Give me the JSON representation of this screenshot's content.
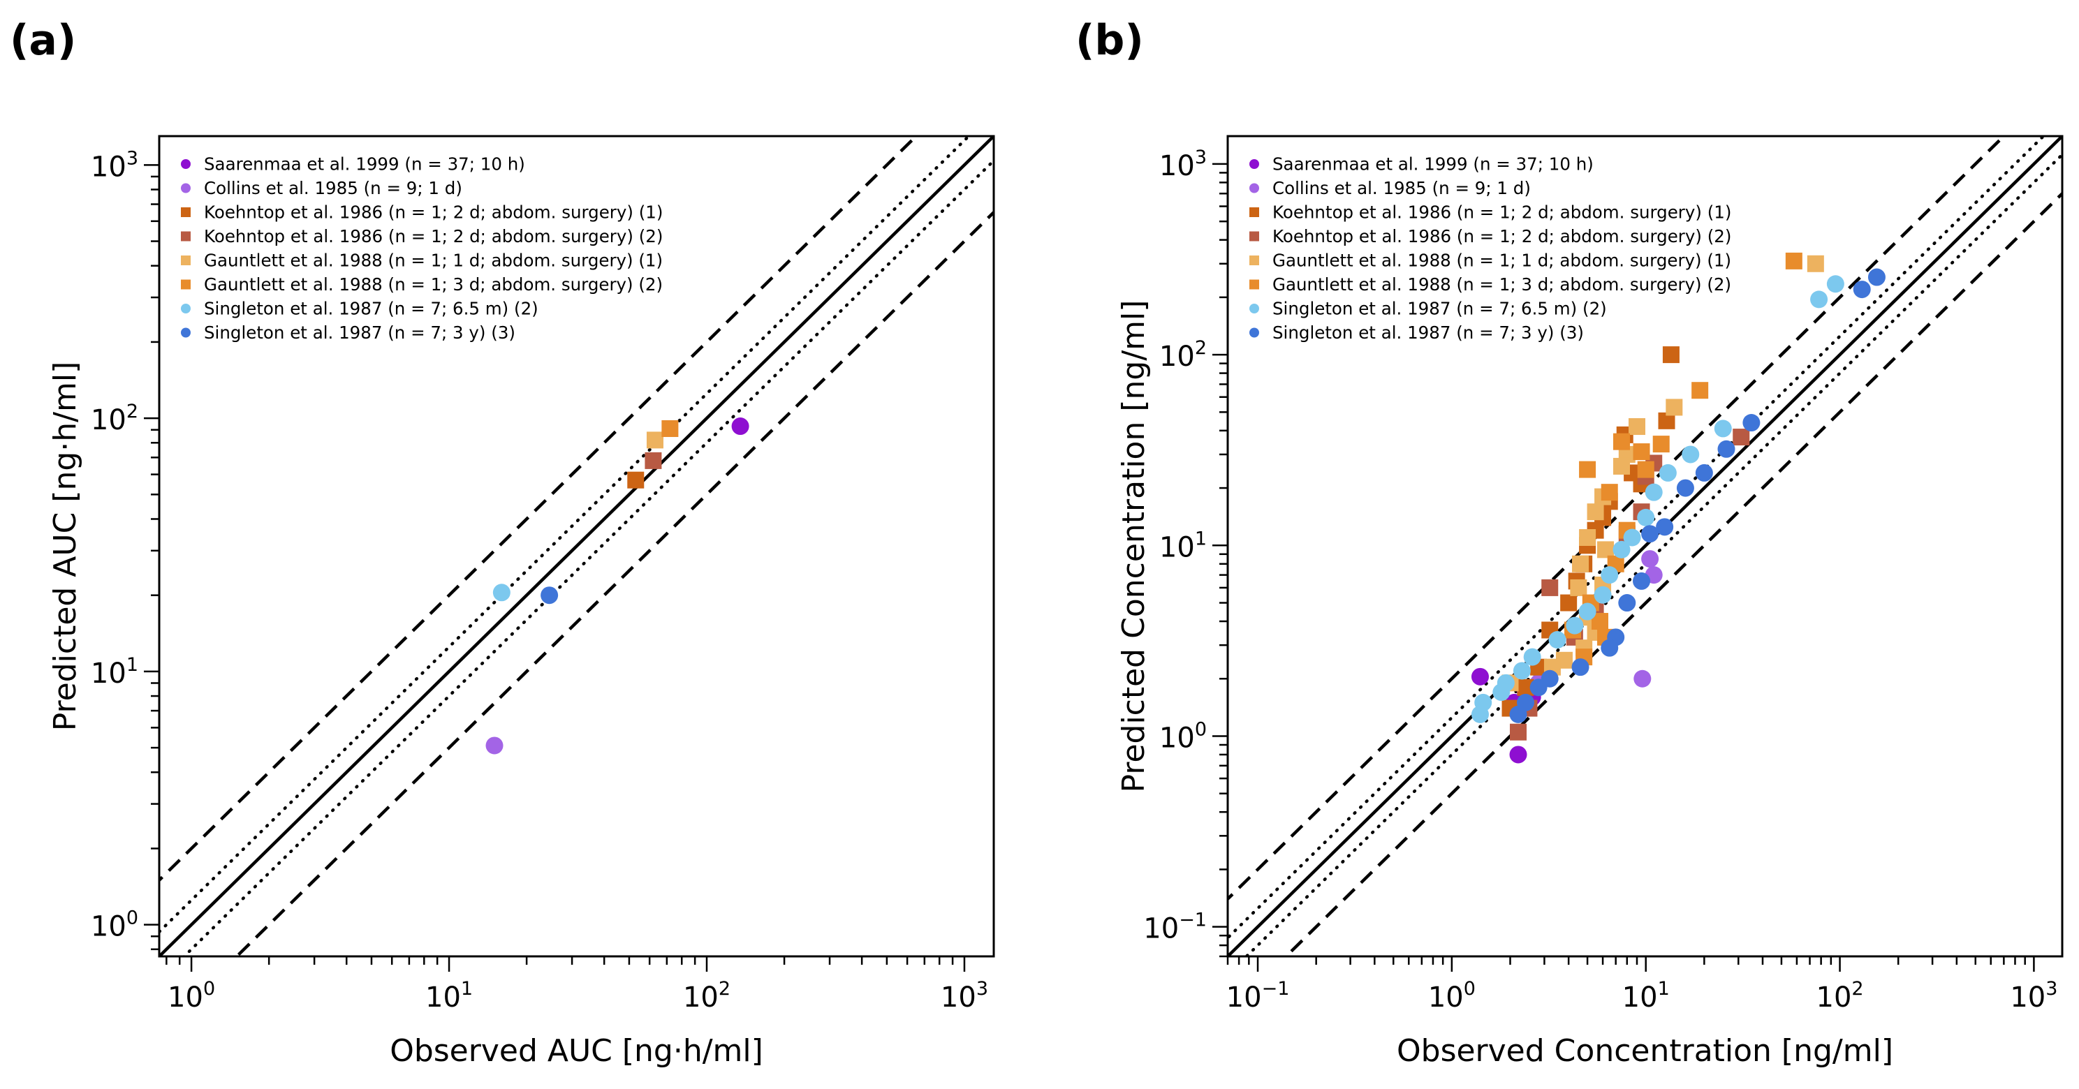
{
  "chart_data": [
    {
      "panel_label": "(a)",
      "type": "scatter",
      "xlabel": "Observed AUC [ng·h/ml]",
      "ylabel": "Predicted AUC [ng·h/ml]",
      "xscale": "log",
      "yscale": "log",
      "xlim": [
        0.75,
        1300
      ],
      "ylim": [
        0.75,
        1300
      ],
      "xticks": [
        1,
        10,
        100,
        1000
      ],
      "xtick_labels": [
        {
          "base": "10",
          "exp": "0"
        },
        {
          "base": "10",
          "exp": "1"
        },
        {
          "base": "10",
          "exp": "2"
        },
        {
          "base": "10",
          "exp": "3"
        }
      ],
      "yticks": [
        1,
        10,
        100,
        1000
      ],
      "ytick_labels": [
        {
          "base": "10",
          "exp": "0"
        },
        {
          "base": "10",
          "exp": "1"
        },
        {
          "base": "10",
          "exp": "2"
        },
        {
          "base": "10",
          "exp": "3"
        }
      ],
      "reference_lines": [
        {
          "fold": 1,
          "style": "solid"
        },
        {
          "fold": 1.25,
          "style": "dotted"
        },
        {
          "fold": 0.8,
          "style": "dotted"
        },
        {
          "fold": 2,
          "style": "dashed"
        },
        {
          "fold": 0.5,
          "style": "dashed"
        }
      ],
      "legend": {
        "position": "top-left"
      },
      "series": [
        {
          "name": "Saarenmaa et al. 1999 (n = 37; 10 h)",
          "color": "#8e0fd1",
          "marker": "circle",
          "points": [
            [
              135,
              93
            ]
          ]
        },
        {
          "name": "Collins et al. 1985 (n = 9; 1 d)",
          "color": "#a364e6",
          "marker": "circle",
          "points": [
            [
              15,
              5.1
            ]
          ]
        },
        {
          "name": "Koehntop et al. 1986 (n = 1; 2 d; abdom. surgery) (1)",
          "color": "#cc6414",
          "marker": "square",
          "points": [
            [
              53,
              57
            ]
          ]
        },
        {
          "name": "Koehntop et al. 1986 (n = 1; 2 d; abdom. surgery) (2)",
          "color": "#b85a43",
          "marker": "square",
          "points": [
            [
              62,
              68
            ]
          ]
        },
        {
          "name": "Gauntlett et al. 1988 (n = 1; 1 d; abdom. surgery) (1)",
          "color": "#edb25f",
          "marker": "square",
          "points": [
            [
              63,
              82
            ]
          ]
        },
        {
          "name": "Gauntlett et al. 1988 (n = 1; 3 d; abdom. surgery) (2)",
          "color": "#e88c2c",
          "marker": "square",
          "points": [
            [
              72,
              91
            ]
          ]
        },
        {
          "name": "Singleton et al. 1987 (n = 7; 6.5 m) (2)",
          "color": "#7cc8ee",
          "marker": "circle",
          "points": [
            [
              16,
              20.5
            ]
          ]
        },
        {
          "name": "Singleton et al. 1987 (n = 7; 3 y) (3)",
          "color": "#3f75d8",
          "marker": "circle",
          "points": [
            [
              24.5,
              20
            ]
          ]
        }
      ]
    },
    {
      "panel_label": "(b)",
      "type": "scatter",
      "xlabel": "Observed Concentration [ng/ml]",
      "ylabel": "Predicted Concentration [ng/ml]",
      "xscale": "log",
      "yscale": "log",
      "xlim": [
        0.07,
        1400
      ],
      "ylim": [
        0.07,
        1400
      ],
      "xticks": [
        0.1,
        1,
        10,
        100,
        1000
      ],
      "xtick_labels": [
        {
          "base": "10",
          "exp": "−1"
        },
        {
          "base": "10",
          "exp": "0"
        },
        {
          "base": "10",
          "exp": "1"
        },
        {
          "base": "10",
          "exp": "2"
        },
        {
          "base": "10",
          "exp": "3"
        }
      ],
      "yticks": [
        0.1,
        1,
        10,
        100,
        1000
      ],
      "ytick_labels": [
        {
          "base": "10",
          "exp": "−1"
        },
        {
          "base": "10",
          "exp": "0"
        },
        {
          "base": "10",
          "exp": "1"
        },
        {
          "base": "10",
          "exp": "2"
        },
        {
          "base": "10",
          "exp": "3"
        }
      ],
      "reference_lines": [
        {
          "fold": 1,
          "style": "solid"
        },
        {
          "fold": 1.25,
          "style": "dotted"
        },
        {
          "fold": 0.8,
          "style": "dotted"
        },
        {
          "fold": 2,
          "style": "dashed"
        },
        {
          "fold": 0.5,
          "style": "dashed"
        }
      ],
      "legend": {
        "position": "top-left"
      },
      "series": [
        {
          "name": "Saarenmaa et al. 1999 (n = 37; 10 h)",
          "color": "#8e0fd1",
          "marker": "circle",
          "points": [
            [
              1.4,
              2.05
            ],
            [
              2.2,
              0.8
            ],
            [
              2.1,
              1.5
            ],
            [
              2.4,
              1.7
            ],
            [
              2.6,
              1.6
            ]
          ]
        },
        {
          "name": "Collins et al. 1985 (n = 9; 1 d)",
          "color": "#a364e6",
          "marker": "circle",
          "points": [
            [
              9.6,
              2.0
            ],
            [
              11,
              7.0
            ],
            [
              10.5,
              8.5
            ],
            [
              2.8,
              1.9
            ]
          ]
        },
        {
          "name": "Koehntop et al. 1986 (n = 1; 2 d; abdom. surgery) (1)",
          "color": "#cc6414",
          "marker": "square",
          "points": [
            [
              13.5,
              100
            ],
            [
              12.8,
              45
            ],
            [
              8.5,
              24
            ],
            [
              9.5,
              21
            ],
            [
              7.8,
              38
            ],
            [
              6.5,
              17
            ],
            [
              6,
              14
            ],
            [
              5.5,
              12
            ],
            [
              5,
              10
            ],
            [
              4.8,
              8
            ],
            [
              4.4,
              6.5
            ],
            [
              4,
              5
            ],
            [
              3.2,
              3.6
            ],
            [
              2.8,
              2.3
            ],
            [
              2.4,
              1.8
            ],
            [
              2,
              1.4
            ]
          ]
        },
        {
          "name": "Koehntop et al. 1986 (n = 1; 2 d; abdom. surgery) (2)",
          "color": "#b85a43",
          "marker": "square",
          "points": [
            [
              31,
              37
            ],
            [
              11,
              27
            ],
            [
              10,
              23
            ],
            [
              9.5,
              15
            ],
            [
              8,
              11.5
            ],
            [
              3.2,
              6
            ],
            [
              2.2,
              1.05
            ],
            [
              2.5,
              1.4
            ],
            [
              4.3,
              3.3
            ],
            [
              5.5,
              4.5
            ]
          ]
        },
        {
          "name": "Gauntlett et al. 1988 (n = 1; 1 d; abdom. surgery) (1)",
          "color": "#edb25f",
          "marker": "square",
          "points": [
            [
              75,
              300
            ],
            [
              14,
              53
            ],
            [
              9,
              42
            ],
            [
              8,
              30
            ],
            [
              7.5,
              26
            ],
            [
              6,
              18
            ],
            [
              5.5,
              15
            ],
            [
              5,
              11
            ],
            [
              4.6,
              8
            ],
            [
              4.5,
              6
            ],
            [
              5,
              4.2
            ],
            [
              5.5,
              3.5
            ],
            [
              4.8,
              2.9
            ],
            [
              3.8,
              2.5
            ],
            [
              3.3,
              2.3
            ],
            [
              2,
              1.9
            ],
            [
              6.2,
              9.5
            ],
            [
              6,
              6.2
            ]
          ]
        },
        {
          "name": "Gauntlett et al. 1988 (n = 1; 3 d; abdom. surgery) (2)",
          "color": "#e88c2c",
          "marker": "square",
          "points": [
            [
              58,
              310
            ],
            [
              19,
              65
            ],
            [
              12,
              34
            ],
            [
              10,
              25
            ],
            [
              9.5,
              31
            ],
            [
              7.5,
              35
            ],
            [
              6.5,
              19
            ],
            [
              5,
              25
            ],
            [
              5.2,
              5
            ],
            [
              5.8,
              4
            ],
            [
              6.2,
              3.3
            ],
            [
              4.8,
              2.6
            ],
            [
              4.2,
              3.6
            ],
            [
              7,
              8
            ],
            [
              8,
              12
            ]
          ]
        },
        {
          "name": "Singleton et al. 1987 (n = 7; 6.5 m) (2)",
          "color": "#7cc8ee",
          "marker": "circle",
          "points": [
            [
              95,
              235
            ],
            [
              78,
              195
            ],
            [
              25,
              41
            ],
            [
              17,
              30
            ],
            [
              13,
              24
            ],
            [
              11,
              19
            ],
            [
              10,
              14
            ],
            [
              8.5,
              11
            ],
            [
              7.5,
              9.5
            ],
            [
              6.5,
              7
            ],
            [
              6,
              5.5
            ],
            [
              5,
              4.5
            ],
            [
              4.3,
              3.8
            ],
            [
              3.5,
              3.2
            ],
            [
              2.6,
              2.6
            ],
            [
              2.3,
              2.2
            ],
            [
              1.9,
              1.9
            ],
            [
              1.8,
              1.7
            ],
            [
              1.4,
              1.3
            ],
            [
              1.45,
              1.5
            ]
          ]
        },
        {
          "name": "Singleton et al. 1987 (n = 7; 3 y) (3)",
          "color": "#3f75d8",
          "marker": "circle",
          "points": [
            [
              155,
              255
            ],
            [
              130,
              220
            ],
            [
              35,
              44
            ],
            [
              26,
              32
            ],
            [
              20,
              24
            ],
            [
              16,
              20
            ],
            [
              12.5,
              12.5
            ],
            [
              10.5,
              11.5
            ],
            [
              9.5,
              6.5
            ],
            [
              8,
              5
            ],
            [
              7,
              3.3
            ],
            [
              6.5,
              2.9
            ],
            [
              4.6,
              2.3
            ],
            [
              3.2,
              2
            ],
            [
              2.8,
              1.8
            ],
            [
              2.4,
              1.5
            ],
            [
              2.2,
              1.3
            ]
          ]
        }
      ]
    }
  ]
}
